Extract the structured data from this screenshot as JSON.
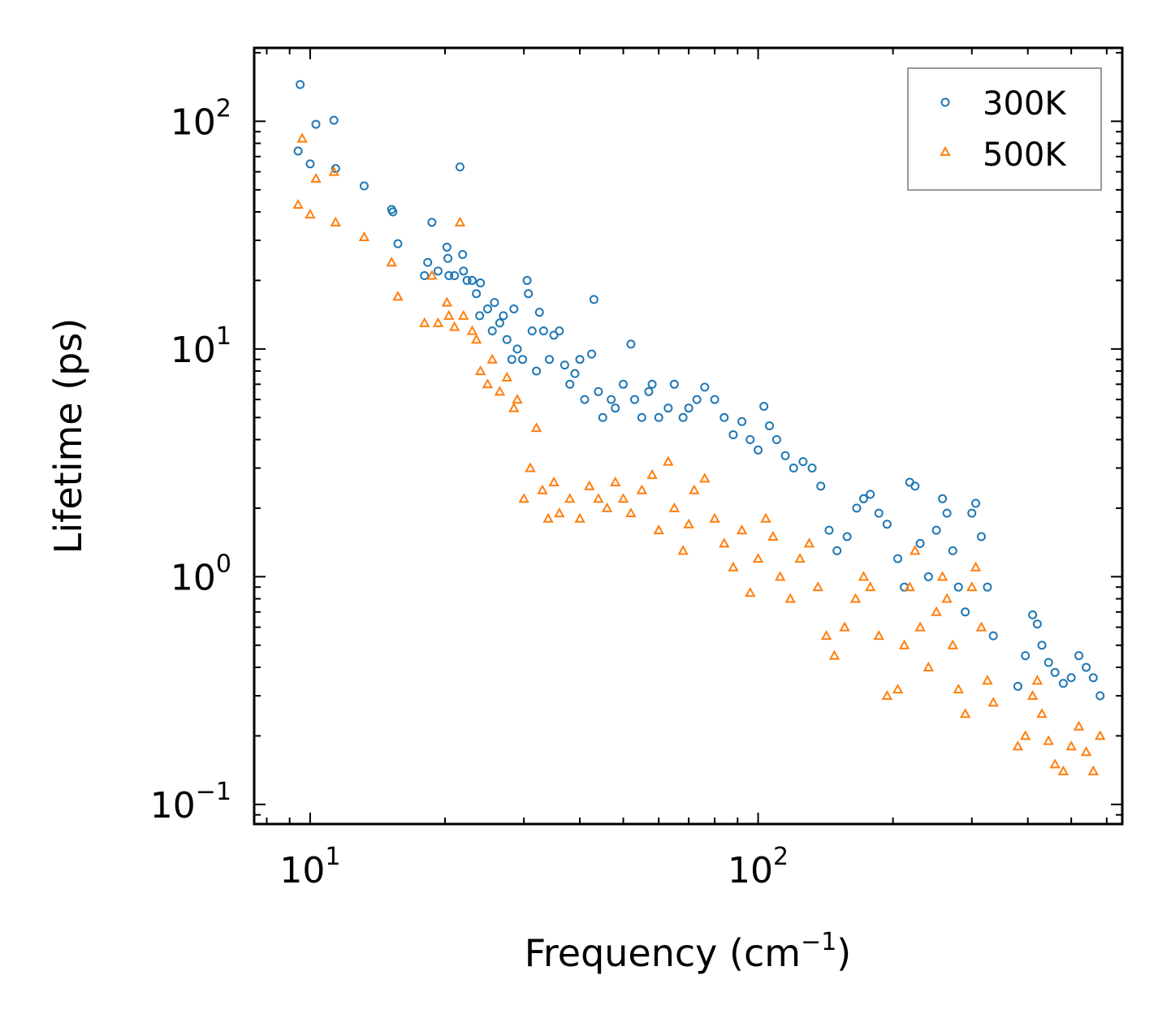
{
  "chart_data": {
    "type": "scatter",
    "title": "",
    "xscale": "log",
    "yscale": "log",
    "xlim": [
      7.5,
      650
    ],
    "ylim": [
      0.082,
      210
    ],
    "xlabel": {
      "base": "Frequency (cm",
      "sup": "−1",
      "tail": ")"
    },
    "ylabel": "Lifetime (ps)",
    "xticks": [
      {
        "value": 10,
        "base": "10",
        "exp": "1"
      },
      {
        "value": 100,
        "base": "10",
        "exp": "2"
      }
    ],
    "yticks": [
      {
        "value": 0.1,
        "base": "10",
        "exp": "−1"
      },
      {
        "value": 1,
        "base": "10",
        "exp": "0"
      },
      {
        "value": 10,
        "base": "10",
        "exp": "1"
      },
      {
        "value": 100,
        "base": "10",
        "exp": "2"
      }
    ],
    "legend_position": "top-right",
    "series": [
      {
        "name": "300K",
        "marker": "circle",
        "color": "#1f77b4",
        "points": [
          [
            9.5,
            145
          ],
          [
            9.4,
            74
          ],
          [
            10.0,
            65
          ],
          [
            10.3,
            97
          ],
          [
            11.3,
            101
          ],
          [
            11.4,
            62
          ],
          [
            13.2,
            52
          ],
          [
            15.2,
            41
          ],
          [
            15.3,
            40
          ],
          [
            15.7,
            29
          ],
          [
            18.0,
            21
          ],
          [
            18.3,
            24
          ],
          [
            18.7,
            36
          ],
          [
            19.3,
            22
          ],
          [
            20.2,
            28
          ],
          [
            20.3,
            25
          ],
          [
            20.4,
            21
          ],
          [
            21.0,
            21
          ],
          [
            21.6,
            63
          ],
          [
            21.9,
            26
          ],
          [
            22.0,
            22
          ],
          [
            22.4,
            20
          ],
          [
            23.0,
            20
          ],
          [
            23.5,
            17.5
          ],
          [
            23.9,
            14
          ],
          [
            24.0,
            19.5
          ],
          [
            24.9,
            15
          ],
          [
            25.5,
            12
          ],
          [
            25.8,
            16
          ],
          [
            26.5,
            13
          ],
          [
            27.0,
            14
          ],
          [
            27.5,
            11
          ],
          [
            28.2,
            9
          ],
          [
            28.5,
            15
          ],
          [
            29.0,
            10
          ],
          [
            29.8,
            9
          ],
          [
            30.5,
            20
          ],
          [
            30.7,
            17.5
          ],
          [
            31.3,
            12
          ],
          [
            32.0,
            8
          ],
          [
            32.5,
            14.5
          ],
          [
            33.2,
            12
          ],
          [
            34.2,
            9
          ],
          [
            35.0,
            11.5
          ],
          [
            36.0,
            12
          ],
          [
            37.0,
            8.5
          ],
          [
            38.0,
            7
          ],
          [
            39.0,
            7.8
          ],
          [
            40.0,
            9
          ],
          [
            41.0,
            6
          ],
          [
            42.5,
            9.5
          ],
          [
            43.0,
            16.5
          ],
          [
            44.0,
            6.5
          ],
          [
            45.0,
            5
          ],
          [
            47.0,
            6
          ],
          [
            48.0,
            5.5
          ],
          [
            50.0,
            7
          ],
          [
            52.0,
            10.5
          ],
          [
            53.0,
            6
          ],
          [
            55.0,
            5
          ],
          [
            57.0,
            6.5
          ],
          [
            58.0,
            7
          ],
          [
            60.0,
            5
          ],
          [
            63.0,
            5.5
          ],
          [
            65.0,
            7
          ],
          [
            68.0,
            5
          ],
          [
            70.0,
            5.5
          ],
          [
            73.0,
            6
          ],
          [
            76.0,
            6.8
          ],
          [
            80.0,
            6
          ],
          [
            84.0,
            5
          ],
          [
            88.0,
            4.2
          ],
          [
            92.0,
            4.8
          ],
          [
            96.0,
            4
          ],
          [
            100.0,
            3.6
          ],
          [
            103.0,
            5.6
          ],
          [
            106.0,
            4.6
          ],
          [
            110.0,
            4
          ],
          [
            115.0,
            3.4
          ],
          [
            120.0,
            3
          ],
          [
            126.0,
            3.2
          ],
          [
            132.0,
            3
          ],
          [
            138.0,
            2.5
          ],
          [
            144.0,
            1.6
          ],
          [
            150.0,
            1.3
          ],
          [
            158.0,
            1.5
          ],
          [
            166.0,
            2.0
          ],
          [
            172.0,
            2.2
          ],
          [
            178.0,
            2.3
          ],
          [
            186.0,
            1.9
          ],
          [
            194.0,
            1.7
          ],
          [
            205.0,
            1.2
          ],
          [
            212.0,
            0.9
          ],
          [
            218.0,
            2.6
          ],
          [
            224.0,
            2.5
          ],
          [
            230.0,
            1.4
          ],
          [
            240.0,
            1.0
          ],
          [
            250.0,
            1.6
          ],
          [
            258.0,
            2.2
          ],
          [
            264.0,
            1.9
          ],
          [
            272.0,
            1.3
          ],
          [
            280.0,
            0.9
          ],
          [
            290.0,
            0.7
          ],
          [
            300.0,
            1.9
          ],
          [
            306.0,
            2.1
          ],
          [
            315.0,
            1.5
          ],
          [
            325.0,
            0.9
          ],
          [
            335.0,
            0.55
          ],
          [
            380.0,
            0.33
          ],
          [
            395.0,
            0.45
          ],
          [
            410.0,
            0.68
          ],
          [
            420.0,
            0.62
          ],
          [
            430.0,
            0.5
          ],
          [
            445.0,
            0.42
          ],
          [
            460.0,
            0.38
          ],
          [
            480.0,
            0.34
          ],
          [
            500.0,
            0.36
          ],
          [
            520.0,
            0.45
          ],
          [
            540.0,
            0.4
          ],
          [
            560.0,
            0.36
          ],
          [
            580.0,
            0.3
          ]
        ]
      },
      {
        "name": "500K",
        "marker": "triangle",
        "color": "#ff7f0e",
        "points": [
          [
            9.4,
            43
          ],
          [
            9.6,
            84
          ],
          [
            10.0,
            39
          ],
          [
            10.3,
            56
          ],
          [
            11.3,
            60
          ],
          [
            11.4,
            36
          ],
          [
            13.2,
            31
          ],
          [
            15.2,
            24
          ],
          [
            15.7,
            17
          ],
          [
            18.0,
            13
          ],
          [
            18.7,
            21
          ],
          [
            19.3,
            13
          ],
          [
            20.2,
            16
          ],
          [
            20.4,
            14
          ],
          [
            21.0,
            12.5
          ],
          [
            21.6,
            36
          ],
          [
            22.0,
            14
          ],
          [
            23.0,
            12
          ],
          [
            23.5,
            11
          ],
          [
            24.0,
            8
          ],
          [
            24.9,
            7
          ],
          [
            25.5,
            9
          ],
          [
            26.5,
            6.5
          ],
          [
            27.5,
            7.5
          ],
          [
            28.5,
            5.5
          ],
          [
            29.0,
            6
          ],
          [
            30.0,
            2.2
          ],
          [
            31.0,
            3
          ],
          [
            32.0,
            4.5
          ],
          [
            33.0,
            2.4
          ],
          [
            34.0,
            1.8
          ],
          [
            35.0,
            2.6
          ],
          [
            36.0,
            1.9
          ],
          [
            38.0,
            2.2
          ],
          [
            40.0,
            1.8
          ],
          [
            42.0,
            2.5
          ],
          [
            44.0,
            2.2
          ],
          [
            46.0,
            2
          ],
          [
            48.0,
            2.6
          ],
          [
            50.0,
            2.2
          ],
          [
            52.0,
            1.9
          ],
          [
            55.0,
            2.4
          ],
          [
            58.0,
            2.8
          ],
          [
            60.0,
            1.6
          ],
          [
            63.0,
            3.2
          ],
          [
            65.0,
            2
          ],
          [
            68.0,
            1.3
          ],
          [
            70.0,
            1.7
          ],
          [
            72.0,
            2.4
          ],
          [
            76.0,
            2.7
          ],
          [
            80.0,
            1.8
          ],
          [
            84.0,
            1.4
          ],
          [
            88.0,
            1.1
          ],
          [
            92.0,
            1.6
          ],
          [
            96.0,
            0.85
          ],
          [
            100.0,
            1.2
          ],
          [
            104.0,
            1.8
          ],
          [
            108.0,
            1.5
          ],
          [
            112.0,
            1
          ],
          [
            118.0,
            0.8
          ],
          [
            124.0,
            1.2
          ],
          [
            130.0,
            1.4
          ],
          [
            136.0,
            0.9
          ],
          [
            142.0,
            0.55
          ],
          [
            148.0,
            0.45
          ],
          [
            156.0,
            0.6
          ],
          [
            165.0,
            0.8
          ],
          [
            172.0,
            1.0
          ],
          [
            178.0,
            0.9
          ],
          [
            186.0,
            0.55
          ],
          [
            194.0,
            0.3
          ],
          [
            205.0,
            0.32
          ],
          [
            212.0,
            0.5
          ],
          [
            218.0,
            0.9
          ],
          [
            224.0,
            1.3
          ],
          [
            230.0,
            0.6
          ],
          [
            240.0,
            0.4
          ],
          [
            250.0,
            0.7
          ],
          [
            258.0,
            1.0
          ],
          [
            264.0,
            0.8
          ],
          [
            272.0,
            0.5
          ],
          [
            280.0,
            0.32
          ],
          [
            290.0,
            0.25
          ],
          [
            300.0,
            0.9
          ],
          [
            306.0,
            1.1
          ],
          [
            315.0,
            0.6
          ],
          [
            325.0,
            0.35
          ],
          [
            335.0,
            0.28
          ],
          [
            380.0,
            0.18
          ],
          [
            395.0,
            0.2
          ],
          [
            410.0,
            0.3
          ],
          [
            420.0,
            0.35
          ],
          [
            430.0,
            0.25
          ],
          [
            445.0,
            0.19
          ],
          [
            460.0,
            0.15
          ],
          [
            480.0,
            0.14
          ],
          [
            500.0,
            0.18
          ],
          [
            520.0,
            0.22
          ],
          [
            540.0,
            0.17
          ],
          [
            560.0,
            0.14
          ],
          [
            580.0,
            0.2
          ]
        ]
      }
    ]
  }
}
